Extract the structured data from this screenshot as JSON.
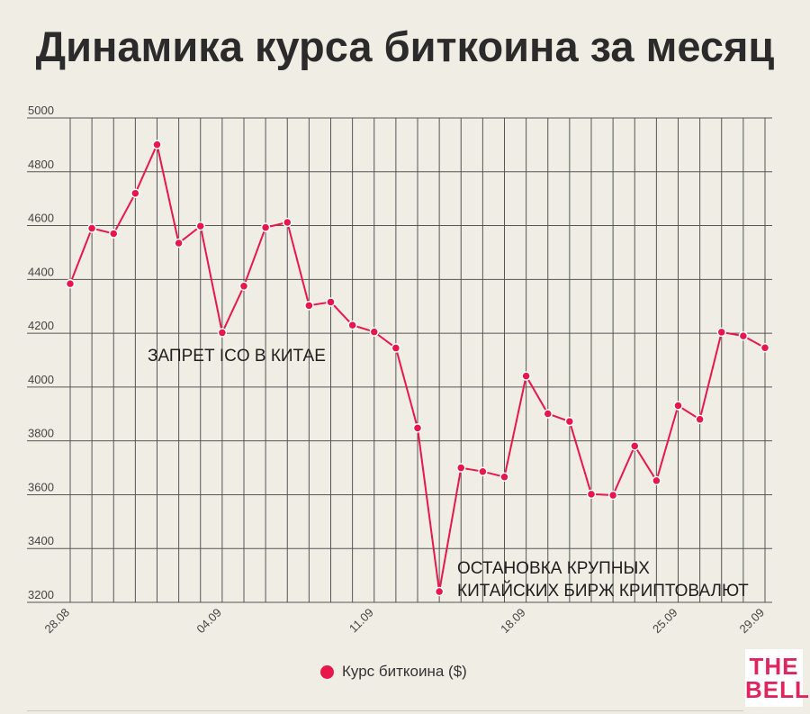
{
  "title": "Динамика курса биткоина за месяц",
  "legend": {
    "label": "Курс биткоина ($)"
  },
  "logo": {
    "line1": "THE",
    "line2": "BELL"
  },
  "colors": {
    "line": "#e8174b",
    "grid": "#555555",
    "background": "#efede4"
  },
  "chart_data": {
    "type": "line",
    "title": "Динамика курса биткоина за месяц",
    "xlabel": "",
    "ylabel": "",
    "ylim": [
      3200,
      5000
    ],
    "yticks": [
      3200,
      3400,
      3600,
      3800,
      4000,
      4200,
      4400,
      4600,
      4800,
      5000
    ],
    "grid": true,
    "legend_position": "bottom",
    "x": [
      "28.08",
      "29.08",
      "30.08",
      "31.08",
      "01.09",
      "02.09",
      "03.09",
      "04.09",
      "05.09",
      "06.09",
      "07.09",
      "08.09",
      "09.09",
      "10.09",
      "11.09",
      "12.09",
      "13.09",
      "14.09",
      "15.09",
      "16.09",
      "17.09",
      "18.09",
      "19.09",
      "20.09",
      "21.09",
      "22.09",
      "23.09",
      "24.09",
      "25.09",
      "26.09",
      "27.09",
      "28.09",
      "29.09"
    ],
    "xtick_labels": [
      "28.08",
      "04.09",
      "11.09",
      "18.09",
      "25.09",
      "29.09"
    ],
    "series": [
      {
        "name": "Курс биткоина ($)",
        "values": [
          4384,
          4590,
          4570,
          4720,
          4901,
          4535,
          4598,
          4202,
          4375,
          4593,
          4612,
          4303,
          4316,
          4230,
          4205,
          4145,
          3848,
          3240,
          3700,
          3686,
          3666,
          4041,
          3901,
          3872,
          3602,
          3598,
          3781,
          3652,
          3931,
          3880,
          4204,
          4190,
          4146
        ]
      }
    ],
    "annotations": [
      {
        "text": "ЗАПРЕТ ICO В КИТАЕ",
        "x": "04.09",
        "y": 4120
      },
      {
        "text": "ОСТАНОВКА КРУПНЫХ",
        "x": "15.09",
        "y": 3200
      },
      {
        "text": "КИТАЙСКИХ БИРЖ КРИПТОВАЛЮТ",
        "x": "15.09",
        "y": 3200
      }
    ]
  }
}
